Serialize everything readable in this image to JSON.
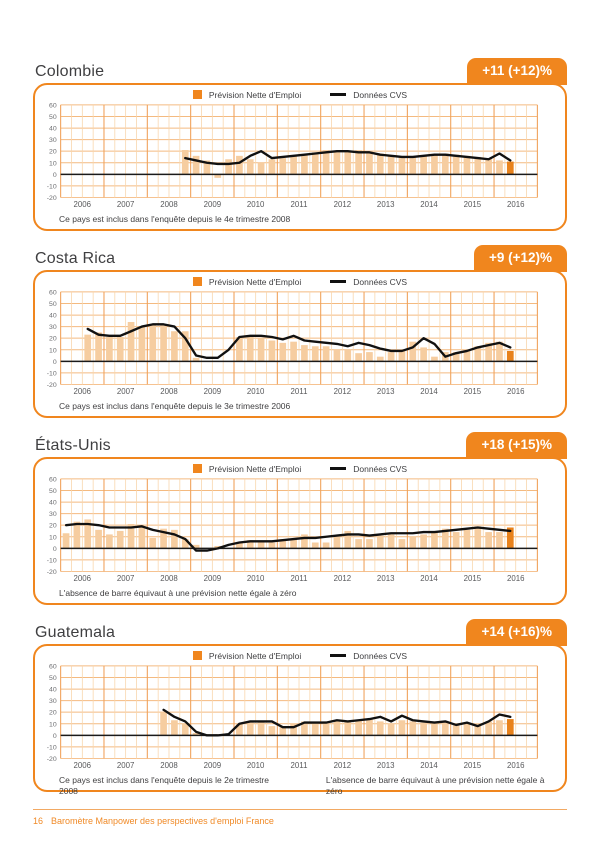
{
  "page": {
    "background": "#ffffff"
  },
  "footer": {
    "page_number": "16",
    "title": "Baromètre Manpower des perspectives d'emploi France"
  },
  "colors": {
    "accent": "#F0861E",
    "bar": "#F6CDA0",
    "bar_current": "#E8821C",
    "cvs_line": "#111111",
    "zero_line": "#1A1A1A",
    "grid_h": "#F4BA80",
    "grid_year": "#F0A25B",
    "grid_quarter": "#F8D6AC"
  },
  "axis": {
    "years": [
      "2006",
      "2007",
      "2008",
      "2009",
      "2010",
      "2011",
      "2012",
      "2013",
      "2014",
      "2015",
      "2016"
    ],
    "yticks": [
      60,
      50,
      40,
      30,
      20,
      10,
      0,
      -10,
      -20
    ],
    "ylim": [
      -20,
      60
    ],
    "quarters_per_year": 4,
    "total_slots": 44
  },
  "chart_data": [
    {
      "type": "bar+line",
      "title": "Colombie",
      "badge": "+11 (+12)%",
      "legend": {
        "bars": "Prévision Nette d'Emploi",
        "line": "Données CVS"
      },
      "unit": "%",
      "first_data_quarter": "2008-T4",
      "start_index": 11,
      "bars": [
        21,
        16,
        12,
        -3,
        13,
        16,
        13,
        10,
        13,
        14,
        16,
        17,
        19,
        21,
        19,
        20,
        21,
        20,
        18,
        16,
        15,
        15,
        16,
        17,
        18,
        17,
        16,
        15,
        14,
        12,
        11
      ],
      "cvs": [
        14,
        12,
        10,
        9,
        9,
        10,
        16,
        20,
        14,
        15,
        16,
        17,
        18,
        19,
        20,
        20,
        19,
        19,
        17,
        16,
        15,
        15,
        16,
        17,
        17,
        16,
        15,
        14,
        13,
        18,
        12
      ],
      "notes": [
        "Ce pays est inclus dans l'enquête depuis le 4e trimestre 2008"
      ]
    },
    {
      "type": "bar+line",
      "title": "Costa Rica",
      "badge": "+9 (+12)%",
      "legend": {
        "bars": "Prévision Nette d'Emploi",
        "line": "Données CVS"
      },
      "unit": "%",
      "first_data_quarter": "2006-T3",
      "start_index": 2,
      "bars": [
        23,
        25,
        21,
        21,
        34,
        30,
        31,
        31,
        26,
        26,
        3,
        0,
        0,
        0,
        21,
        22,
        20,
        18,
        16,
        17,
        14,
        13,
        13,
        10,
        10,
        7,
        8,
        4,
        8,
        10,
        17,
        12,
        4,
        8,
        8,
        10,
        13,
        16,
        17,
        9
      ],
      "cvs": [
        28,
        23,
        22,
        22,
        26,
        30,
        32,
        32,
        30,
        20,
        5,
        3,
        3,
        10,
        21,
        22,
        22,
        21,
        19,
        22,
        18,
        17,
        16,
        15,
        13,
        16,
        14,
        11,
        9,
        9,
        12,
        20,
        15,
        4,
        7,
        9,
        12,
        14,
        16,
        12
      ],
      "notes": [
        "Ce pays est inclus dans l'enquête depuis le 3e trimestre 2006"
      ]
    },
    {
      "type": "bar+line",
      "title": "États-Unis",
      "badge": "+18 (+15)%",
      "legend": {
        "bars": "Prévision Nette d'Emploi",
        "line": "Données CVS"
      },
      "unit": "%",
      "first_data_quarter": "2006-T1",
      "start_index": 0,
      "bars": [
        13,
        23,
        25,
        16,
        12,
        15,
        21,
        19,
        9,
        17,
        16,
        8,
        3,
        0,
        2,
        0,
        5,
        7,
        5,
        5,
        8,
        8,
        12,
        5,
        5,
        11,
        15,
        8,
        8,
        11,
        12,
        8,
        10,
        12,
        14,
        17,
        14,
        16,
        19,
        14,
        14,
        18
      ],
      "cvs": [
        20,
        21,
        21,
        20,
        18,
        18,
        18,
        19,
        16,
        14,
        12,
        8,
        -2,
        -2,
        0,
        3,
        5,
        6,
        6,
        6,
        7,
        8,
        9,
        9,
        10,
        11,
        12,
        12,
        11,
        12,
        13,
        13,
        13,
        14,
        14,
        15,
        16,
        17,
        18,
        17,
        16,
        15
      ],
      "notes": [
        "L'absence de barre équivaut à une prévision nette égale à zéro"
      ]
    },
    {
      "type": "bar+line",
      "title": "Guatemala",
      "badge": "+14 (+16)%",
      "legend": {
        "bars": "Prévision Nette d'Emploi",
        "line": "Données CVS"
      },
      "unit": "%",
      "first_data_quarter": "2008-T2",
      "start_index": 9,
      "bars": [
        20,
        13,
        10,
        2,
        1,
        1,
        0,
        10,
        11,
        12,
        8,
        7,
        10,
        12,
        11,
        12,
        13,
        12,
        13,
        14,
        12,
        10,
        13,
        12,
        11,
        12,
        11,
        9,
        10,
        10,
        12,
        13,
        14
      ],
      "cvs": [
        22,
        16,
        12,
        3,
        0,
        0,
        1,
        10,
        12,
        12,
        12,
        7,
        7,
        11,
        11,
        11,
        13,
        12,
        13,
        14,
        16,
        12,
        17,
        13,
        12,
        11,
        12,
        9,
        11,
        8,
        12,
        18,
        16
      ],
      "notes": [
        "Ce pays est inclus dans l'enquête depuis le 2e trimestre 2008",
        "L'absence de barre équivaut à une prévision nette égale à zéro"
      ]
    }
  ]
}
